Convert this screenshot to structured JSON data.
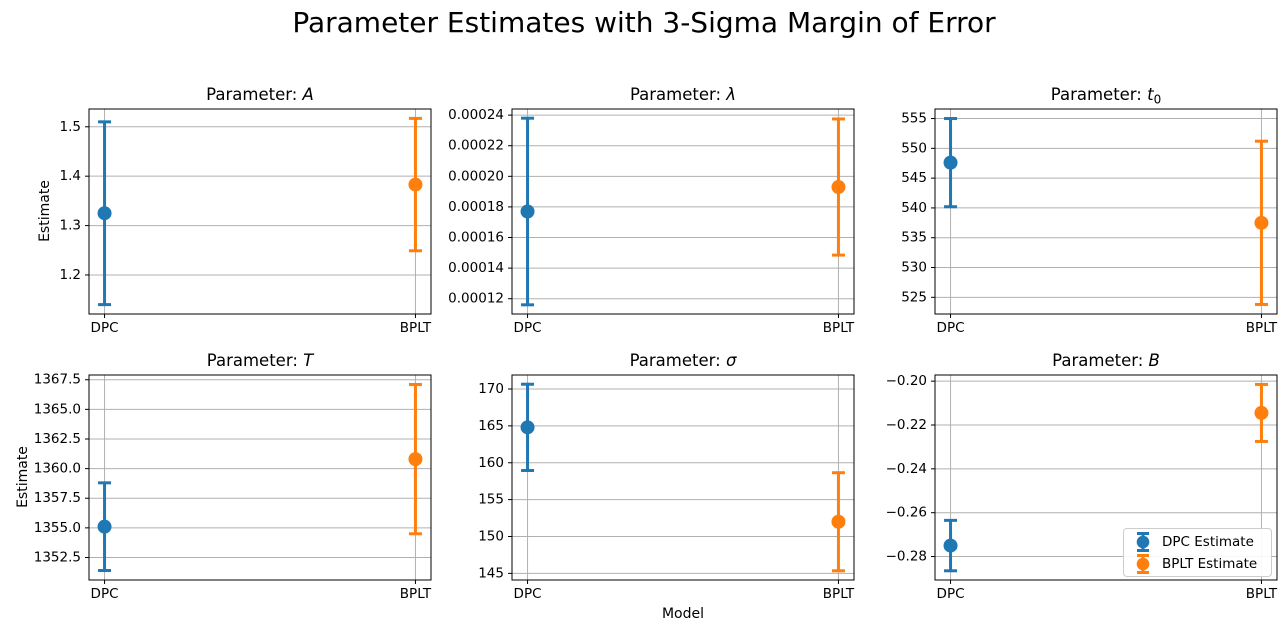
{
  "figure": {
    "title": "Parameter Estimates with 3-Sigma Margin of Error",
    "xlabel": "Model",
    "ylabel": "Estimate",
    "background": "#ffffff",
    "text_color": "#000000",
    "grid_color": "#b0b0b0",
    "spine_color": "#000000"
  },
  "legend": {
    "items": [
      {
        "label": "DPC Estimate",
        "color": "#1f77b4"
      },
      {
        "label": "BPLT Estimate",
        "color": "#ff7f0e"
      }
    ]
  },
  "chart_data": [
    {
      "type": "scatter",
      "id": "A",
      "title": "Parameter: A",
      "title_prefix": "Parameter: ",
      "symbol": "A",
      "subscript": "",
      "ylabel": "Estimate",
      "xlabel": "",
      "grid": true,
      "categories": [
        "DPC",
        "BPLT"
      ],
      "x": [
        0,
        1
      ],
      "xlim": [
        -0.05,
        1.05
      ],
      "yticks": [
        1.2,
        1.3,
        1.4,
        1.5
      ],
      "ytick_labels": [
        "1.2",
        "1.3",
        "1.4",
        "1.5"
      ],
      "ylim": [
        1.121,
        1.536
      ],
      "series": [
        {
          "name": "DPC Estimate",
          "color": "#1f77b4",
          "x": 0,
          "estimate": 1.325,
          "margin_3sigma": 0.185
        },
        {
          "name": "BPLT Estimate",
          "color": "#ff7f0e",
          "x": 1,
          "estimate": 1.383,
          "margin_3sigma": 0.134
        }
      ]
    },
    {
      "type": "scatter",
      "id": "lambda",
      "title": "Parameter: λ",
      "title_prefix": "Parameter: ",
      "symbol": "λ",
      "subscript": "",
      "ylabel": "",
      "xlabel": "",
      "grid": true,
      "categories": [
        "DPC",
        "BPLT"
      ],
      "x": [
        0,
        1
      ],
      "xlim": [
        -0.05,
        1.05
      ],
      "yticks": [
        0.00012,
        0.00014,
        0.00016,
        0.00018,
        0.0002,
        0.00022,
        0.00024
      ],
      "ytick_labels": [
        "0.00012",
        "0.00014",
        "0.00016",
        "0.00018",
        "0.00020",
        "0.00022",
        "0.00024"
      ],
      "ylim": [
        0.00011,
        0.000244
      ],
      "series": [
        {
          "name": "DPC Estimate",
          "color": "#1f77b4",
          "x": 0,
          "estimate": 0.000177,
          "margin_3sigma": 6.1e-05
        },
        {
          "name": "BPLT Estimate",
          "color": "#ff7f0e",
          "x": 1,
          "estimate": 0.000193,
          "margin_3sigma": 4.45e-05
        }
      ]
    },
    {
      "type": "scatter",
      "id": "t0",
      "title": "Parameter: t0",
      "title_prefix": "Parameter: ",
      "symbol": "t",
      "subscript": "0",
      "ylabel": "",
      "xlabel": "",
      "grid": true,
      "categories": [
        "DPC",
        "BPLT"
      ],
      "x": [
        0,
        1
      ],
      "xlim": [
        -0.05,
        1.05
      ],
      "yticks": [
        525,
        530,
        535,
        540,
        545,
        550,
        555
      ],
      "ytick_labels": [
        "525",
        "530",
        "535",
        "540",
        "545",
        "550",
        "555"
      ],
      "ylim": [
        522.2,
        556.6
      ],
      "series": [
        {
          "name": "DPC Estimate",
          "color": "#1f77b4",
          "x": 0,
          "estimate": 547.6,
          "margin_3sigma": 7.4
        },
        {
          "name": "BPLT Estimate",
          "color": "#ff7f0e",
          "x": 1,
          "estimate": 537.5,
          "margin_3sigma": 13.7
        }
      ]
    },
    {
      "type": "scatter",
      "id": "T",
      "title": "Parameter: T",
      "title_prefix": "Parameter: ",
      "symbol": "T",
      "subscript": "",
      "ylabel": "Estimate",
      "xlabel": "",
      "grid": true,
      "categories": [
        "DPC",
        "BPLT"
      ],
      "x": [
        0,
        1
      ],
      "xlim": [
        -0.05,
        1.05
      ],
      "yticks": [
        1352.5,
        1355.0,
        1357.5,
        1360.0,
        1362.5,
        1365.0,
        1367.5
      ],
      "ytick_labels": [
        "1352.5",
        "1355.0",
        "1357.5",
        "1360.0",
        "1362.5",
        "1365.0",
        "1367.5"
      ],
      "ylim": [
        1350.6,
        1367.9
      ],
      "series": [
        {
          "name": "DPC Estimate",
          "color": "#1f77b4",
          "x": 0,
          "estimate": 1355.1,
          "margin_3sigma": 3.7
        },
        {
          "name": "BPLT Estimate",
          "color": "#ff7f0e",
          "x": 1,
          "estimate": 1360.8,
          "margin_3sigma": 6.3
        }
      ]
    },
    {
      "type": "scatter",
      "id": "sigma",
      "title": "Parameter: σ",
      "title_prefix": "Parameter: ",
      "symbol": "σ",
      "subscript": "",
      "ylabel": "",
      "xlabel": "Model",
      "grid": true,
      "categories": [
        "DPC",
        "BPLT"
      ],
      "x": [
        0,
        1
      ],
      "xlim": [
        -0.05,
        1.05
      ],
      "yticks": [
        145,
        150,
        155,
        160,
        165,
        170
      ],
      "ytick_labels": [
        "145",
        "150",
        "155",
        "160",
        "165",
        "170"
      ],
      "ylim": [
        144.1,
        171.9
      ],
      "series": [
        {
          "name": "DPC Estimate",
          "color": "#1f77b4",
          "x": 0,
          "estimate": 164.8,
          "margin_3sigma": 5.85
        },
        {
          "name": "BPLT Estimate",
          "color": "#ff7f0e",
          "x": 1,
          "estimate": 152.0,
          "margin_3sigma": 6.65
        }
      ]
    },
    {
      "type": "scatter",
      "id": "B",
      "title": "Parameter: B",
      "title_prefix": "Parameter: ",
      "symbol": "B",
      "subscript": "",
      "ylabel": "",
      "xlabel": "",
      "grid": true,
      "categories": [
        "DPC",
        "BPLT"
      ],
      "x": [
        0,
        1
      ],
      "xlim": [
        -0.05,
        1.05
      ],
      "yticks": [
        -0.28,
        -0.26,
        -0.24,
        -0.22,
        -0.2
      ],
      "ytick_labels": [
        "−0.28",
        "−0.26",
        "−0.24",
        "−0.22",
        "−0.20"
      ],
      "ylim": [
        -0.2907,
        -0.1972
      ],
      "series": [
        {
          "name": "DPC Estimate",
          "color": "#1f77b4",
          "x": 0,
          "estimate": -0.275,
          "margin_3sigma": 0.0115
        },
        {
          "name": "BPLT Estimate",
          "color": "#ff7f0e",
          "x": 1,
          "estimate": -0.2145,
          "margin_3sigma": 0.013
        }
      ]
    }
  ]
}
